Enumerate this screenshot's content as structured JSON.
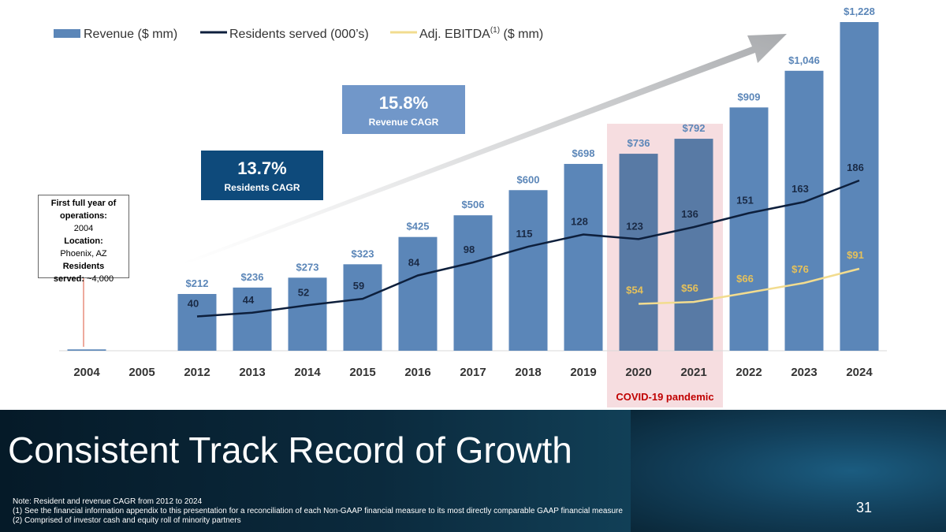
{
  "chart_data": {
    "type": "bar",
    "title": "Consistent Track Record of Growth",
    "categories": [
      "2004",
      "2005",
      "2012",
      "2013",
      "2014",
      "2015",
      "2016",
      "2017",
      "2018",
      "2019",
      "2020",
      "2021",
      "2022",
      "2023",
      "2024"
    ],
    "ylim": [
      0,
      1228
    ],
    "series": [
      {
        "name": "Revenue ($ mm)",
        "type": "bar",
        "color": "#5b86b8",
        "values": [
          5,
          null,
          212,
          236,
          273,
          323,
          425,
          506,
          600,
          698,
          736,
          792,
          909,
          1046,
          1228
        ],
        "labels": [
          "",
          "",
          "$212",
          "$236",
          "$273",
          "$323",
          "$425",
          "$506",
          "$600",
          "$698",
          "$736",
          "$792",
          "$909",
          "$1,046",
          "$1,228"
        ]
      },
      {
        "name": "Residents served (000’s)",
        "type": "line",
        "color": "#0d1f3c",
        "values": [
          null,
          null,
          40,
          44,
          52,
          59,
          84,
          98,
          115,
          128,
          123,
          136,
          151,
          163,
          186
        ],
        "labels": [
          "",
          "",
          "40",
          "44",
          "52",
          "59",
          "84",
          "98",
          "115",
          "128",
          "123",
          "136",
          "151",
          "163",
          "186"
        ]
      },
      {
        "name": "Adj. EBITDA",
        "type": "line",
        "color": "#f2dc8f",
        "values": [
          null,
          null,
          null,
          null,
          null,
          null,
          null,
          null,
          null,
          null,
          54,
          56,
          66,
          76,
          91
        ],
        "labels": [
          "",
          "",
          "",
          "",
          "",
          "",
          "",
          "",
          "",
          "",
          "$54",
          "$56",
          "$66",
          "$76",
          "$91"
        ]
      }
    ],
    "legend": {
      "revenue": "Revenue ($ mm)",
      "residents": "Residents served (000’s)",
      "ebitda_main": "Adj. EBITDA",
      "ebitda_sup": "(1)",
      "ebitda_unit": " ($ mm)"
    },
    "highlight": {
      "from": "2020",
      "to": "2021",
      "label": "COVID-19 pandemic"
    }
  },
  "boxes": {
    "revenue_cagr": {
      "value": "15.8%",
      "label": "Revenue CAGR"
    },
    "residents_cagr": {
      "value": "13.7%",
      "label": "Residents CAGR"
    }
  },
  "callout": {
    "l1": "First full year of",
    "l2": "operations:",
    "l3": "2004",
    "l4": "Location:",
    "l5": "Phoenix, AZ",
    "l6": "Residents",
    "l7a": "served:",
    "l7b": " ~4,000"
  },
  "footer": {
    "title": "Consistent Track Record of Growth",
    "note1": "Note: Resident and revenue CAGR from 2012 to 2024",
    "note2": "(1) See the financial information appendix to this presentation for a reconciliation of each Non-GAAP financial measure to its most directly comparable GAAP financial measure",
    "note3": "(2) Comprised of investor cash and equity roll of minority partners",
    "page": "31"
  },
  "colors": {
    "bar": "#5b86b8",
    "bar_covid": "#587aa5",
    "covid_band": "#f6dde0",
    "residents": "#0d1f3c",
    "ebitda": "#f2dc8f",
    "arrow": "#b0b2b5"
  }
}
